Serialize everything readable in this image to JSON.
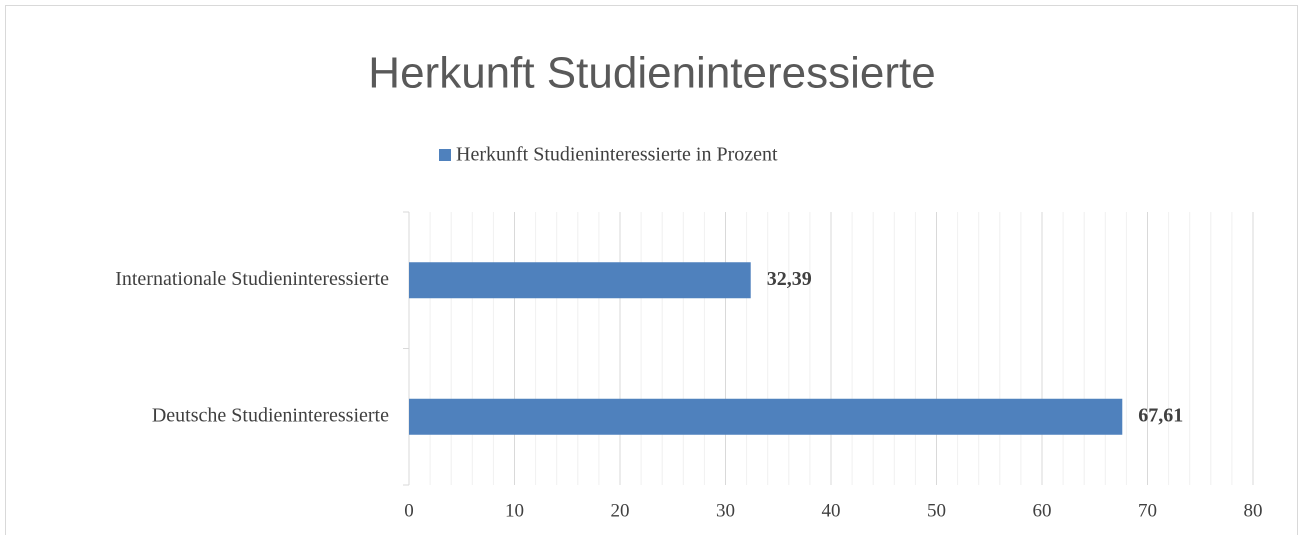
{
  "chart_data": {
    "type": "barh",
    "title": "Herkunft Studieninteressierte",
    "categories": [
      "Internationale Studieninteressierte",
      "Deutsche Studieninteressierte"
    ],
    "series": [
      {
        "name": "Herkunft Studieninteressierte in Prozent",
        "color": "#4f81bd",
        "values": [
          32.39,
          67.61
        ],
        "value_labels": [
          "32,39",
          "67,61"
        ]
      }
    ],
    "xlim": [
      0,
      80
    ],
    "xticks": [
      0,
      10,
      20,
      30,
      40,
      50,
      60,
      70,
      80
    ],
    "minor_xticks": [
      2,
      4,
      6,
      8,
      12,
      14,
      16,
      18,
      22,
      24,
      26,
      28,
      32,
      34,
      36,
      38,
      42,
      44,
      46,
      48,
      52,
      54,
      56,
      58,
      62,
      64,
      66,
      68,
      72,
      74,
      76,
      78
    ],
    "grid": true,
    "legend": "top"
  }
}
